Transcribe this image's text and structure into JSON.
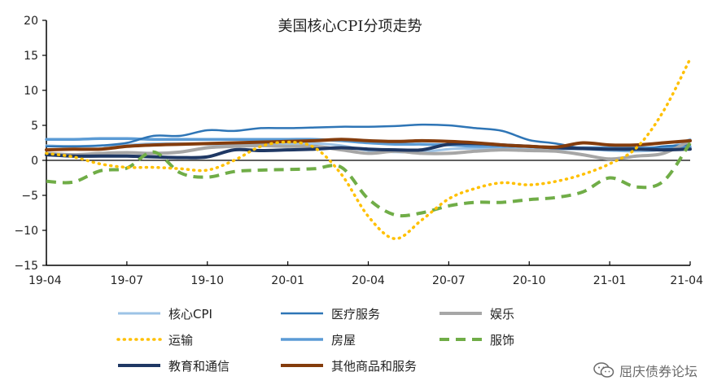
{
  "chart_data": {
    "type": "line",
    "title": "美国核心CPI分项走势",
    "x": [
      "19-04",
      "19-05",
      "19-06",
      "19-07",
      "19-08",
      "19-09",
      "19-10",
      "19-11",
      "19-12",
      "20-01",
      "20-02",
      "20-03",
      "20-04",
      "20-05",
      "20-06",
      "20-07",
      "20-08",
      "20-09",
      "20-10",
      "20-11",
      "20-12",
      "21-01",
      "21-02",
      "21-03",
      "21-04"
    ],
    "x_tick_labels": [
      "19-04",
      "19-07",
      "19-10",
      "20-01",
      "20-04",
      "20-07",
      "20-10",
      "21-01",
      "21-04"
    ],
    "y_tick_labels": [
      "20",
      "15",
      "10",
      "5",
      "0",
      "−5",
      "−10",
      "−15"
    ],
    "ylim": [
      -15,
      20
    ],
    "y_tick_step": 5,
    "xlabel": "",
    "ylabel": "",
    "grid": false,
    "legend_position": "bottom",
    "series": [
      {
        "name": "核心CPI",
        "color": "#9DC3E6",
        "dash": "solid",
        "width": 3,
        "values": [
          2.1,
          2.0,
          2.1,
          2.2,
          2.4,
          2.4,
          2.3,
          2.3,
          2.3,
          2.3,
          2.4,
          2.1,
          1.4,
          1.2,
          1.2,
          1.6,
          1.7,
          1.7,
          1.6,
          1.6,
          1.6,
          1.4,
          1.3,
          1.6,
          3.0
        ]
      },
      {
        "name": "医疗服务",
        "color": "#2E75B6",
        "dash": "solid",
        "width": 2.5,
        "values": [
          2.0,
          2.0,
          2.1,
          2.5,
          3.5,
          3.5,
          4.3,
          4.2,
          4.6,
          4.6,
          4.7,
          4.8,
          4.8,
          4.9,
          5.1,
          5.0,
          4.6,
          4.2,
          2.9,
          2.4,
          1.7,
          1.5,
          1.5,
          2.0,
          2.2
        ]
      },
      {
        "name": "娱乐",
        "color": "#A6A6A6",
        "dash": "solid",
        "width": 4,
        "values": [
          1.0,
          0.8,
          1.0,
          1.1,
          1.0,
          1.2,
          1.8,
          2.0,
          2.1,
          2.0,
          2.0,
          1.5,
          1.0,
          1.3,
          1.0,
          1.0,
          1.3,
          1.5,
          1.4,
          1.3,
          0.8,
          0.2,
          0.6,
          1.0,
          2.8
        ]
      },
      {
        "name": "运输",
        "color": "#FFC000",
        "dash": "dot",
        "width": 3.5,
        "values": [
          1.0,
          0.5,
          -0.5,
          -1.0,
          -1.0,
          -1.2,
          -1.4,
          0.0,
          2.0,
          2.6,
          1.8,
          -2.0,
          -8.0,
          -11.2,
          -8.5,
          -5.5,
          -4.0,
          -3.2,
          -3.5,
          -3.0,
          -2.0,
          -0.5,
          1.8,
          7.0,
          14.5
        ]
      },
      {
        "name": "房屋",
        "color": "#5B9BD5",
        "dash": "solid",
        "width": 3.5,
        "values": [
          3.0,
          3.0,
          3.1,
          3.1,
          3.0,
          3.0,
          3.0,
          3.0,
          3.0,
          3.0,
          3.0,
          2.8,
          2.5,
          2.3,
          2.3,
          2.2,
          2.0,
          2.0,
          2.0,
          1.8,
          1.8,
          1.8,
          1.8,
          1.8,
          1.9
        ]
      },
      {
        "name": "服饰",
        "color": "#70AD47",
        "dash": "dash",
        "width": 4,
        "values": [
          -3.0,
          -3.1,
          -1.5,
          -1.1,
          1.2,
          -1.8,
          -2.4,
          -1.6,
          -1.4,
          -1.3,
          -1.2,
          -1.0,
          -5.5,
          -7.8,
          -7.5,
          -6.5,
          -6.0,
          -6.0,
          -5.6,
          -5.3,
          -4.5,
          -2.5,
          -3.8,
          -3.0,
          2.5
        ]
      },
      {
        "name": "教育和通信",
        "color": "#1F3864",
        "dash": "solid",
        "width": 4,
        "values": [
          0.8,
          0.6,
          0.6,
          0.6,
          0.5,
          0.4,
          0.5,
          1.5,
          1.4,
          1.5,
          1.6,
          1.8,
          1.6,
          1.5,
          1.5,
          2.3,
          2.4,
          2.2,
          2.0,
          1.8,
          1.7,
          1.6,
          1.6,
          1.5,
          1.6
        ]
      },
      {
        "name": "其他商品和服务",
        "color": "#843C0C",
        "dash": "solid",
        "width": 4,
        "values": [
          1.5,
          1.6,
          1.6,
          2.0,
          2.2,
          2.3,
          2.4,
          2.5,
          2.6,
          2.7,
          2.8,
          3.0,
          2.8,
          2.7,
          2.8,
          2.7,
          2.5,
          2.2,
          2.0,
          1.9,
          2.5,
          2.2,
          2.2,
          2.5,
          2.8
        ]
      }
    ]
  },
  "watermark": {
    "text": "屈庆债券论坛",
    "icon": "wechat-icon"
  }
}
